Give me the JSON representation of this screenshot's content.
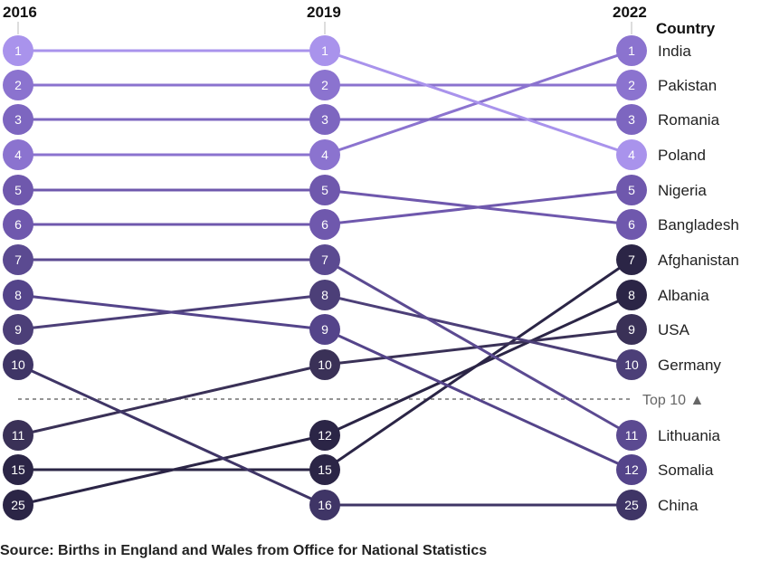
{
  "chart_data": {
    "type": "slope",
    "years": [
      "2016",
      "2019",
      "2022"
    ],
    "column_header": "Country",
    "divider_label": "Top 10 ▲",
    "source": "Source: Births in England and Wales from Office for National Statistics",
    "row_slots": [
      "1",
      "2",
      "3",
      "4",
      "5",
      "6",
      "7",
      "8",
      "9",
      "10",
      "11",
      "12",
      "13"
    ],
    "rank_labels": {
      "2016": [
        "1",
        "2",
        "3",
        "4",
        "5",
        "6",
        "7",
        "8",
        "9",
        "10",
        "11",
        "15",
        "25"
      ],
      "2019": [
        "1",
        "2",
        "3",
        "4",
        "5",
        "6",
        "7",
        "8",
        "9",
        "10",
        "12",
        "15",
        "16"
      ],
      "2022": [
        "1",
        "2",
        "3",
        "4",
        "5",
        "6",
        "7",
        "8",
        "9",
        "10",
        "11",
        "12",
        "25"
      ]
    },
    "series": [
      {
        "country": "India",
        "rows": [
          4,
          4,
          1
        ],
        "ranks": [
          4,
          4,
          1
        ],
        "color": "#8b73cf"
      },
      {
        "country": "Pakistan",
        "rows": [
          2,
          2,
          2
        ],
        "ranks": [
          2,
          2,
          2
        ],
        "color": "#8b73cf"
      },
      {
        "country": "Romania",
        "rows": [
          3,
          3,
          3
        ],
        "ranks": [
          3,
          3,
          3
        ],
        "color": "#7d66c0"
      },
      {
        "country": "Poland",
        "rows": [
          1,
          1,
          4
        ],
        "ranks": [
          1,
          1,
          4
        ],
        "color": "#a993ec"
      },
      {
        "country": "Nigeria",
        "rows": [
          6,
          6,
          5
        ],
        "ranks": [
          6,
          6,
          5
        ],
        "color": "#6f58ad"
      },
      {
        "country": "Bangladesh",
        "rows": [
          5,
          5,
          6
        ],
        "ranks": [
          5,
          5,
          6
        ],
        "color": "#6f58ad"
      },
      {
        "country": "Afghanistan",
        "rows": [
          12,
          12,
          7
        ],
        "ranks": [
          15,
          15,
          7
        ],
        "color": "#2b2546"
      },
      {
        "country": "Albania",
        "rows": [
          13,
          11,
          8
        ],
        "ranks": [
          25,
          12,
          8
        ],
        "color": "#2b2546"
      },
      {
        "country": "USA",
        "rows": [
          11,
          10,
          9
        ],
        "ranks": [
          11,
          10,
          9
        ],
        "color": "#3a3157"
      },
      {
        "country": "Germany",
        "rows": [
          9,
          8,
          10
        ],
        "ranks": [
          9,
          8,
          10
        ],
        "color": "#4c3f78"
      },
      {
        "country": "Lithuania",
        "rows": [
          7,
          7,
          11
        ],
        "ranks": [
          7,
          7,
          11
        ],
        "color": "#5b4a91"
      },
      {
        "country": "Somalia",
        "rows": [
          8,
          9,
          12
        ],
        "ranks": [
          8,
          9,
          12
        ],
        "color": "#54448a"
      },
      {
        "country": "China",
        "rows": [
          10,
          13,
          13
        ],
        "ranks": [
          10,
          16,
          25
        ],
        "color": "#3f3566"
      }
    ]
  }
}
